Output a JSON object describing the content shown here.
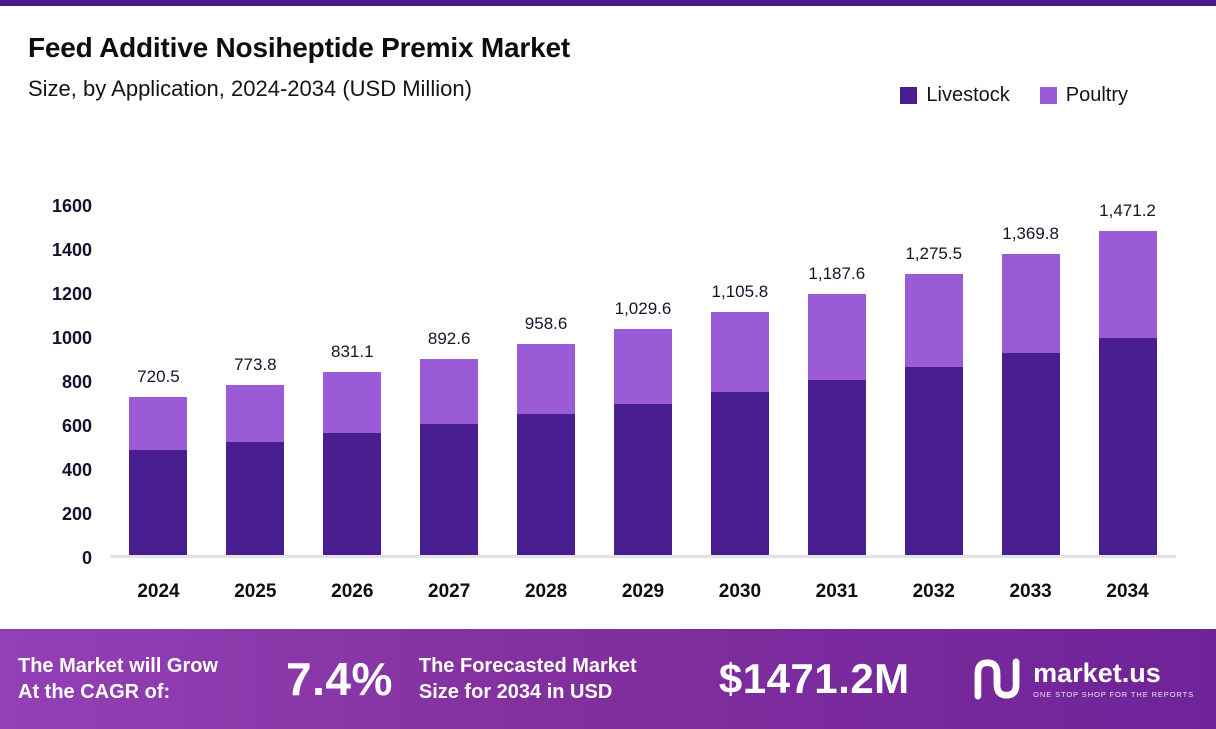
{
  "header": {
    "title": "Feed Additive Nosiheptide Premix Market",
    "subtitle": "Size, by Application, 2024-2034 (USD Million)",
    "legend": [
      {
        "label": "Livestock",
        "color": "#471D8F"
      },
      {
        "label": "Poultry",
        "color": "#9B5BD6"
      }
    ]
  },
  "chart_data": {
    "type": "bar",
    "stacked": true,
    "categories": [
      "2024",
      "2025",
      "2026",
      "2027",
      "2028",
      "2029",
      "2030",
      "2031",
      "2032",
      "2033",
      "2034"
    ],
    "series": [
      {
        "name": "Livestock",
        "color": "#471D8F",
        "values": [
          478.0,
          515.0,
          553.0,
          595.0,
          640.0,
          688.0,
          740.0,
          795.0,
          855.0,
          918.0,
          985.0
        ]
      },
      {
        "name": "Poultry",
        "color": "#9B5BD6",
        "values": [
          242.5,
          258.8,
          278.1,
          297.6,
          318.6,
          341.6,
          365.8,
          392.6,
          420.5,
          451.8,
          486.2
        ]
      }
    ],
    "totals": [
      720.5,
      773.8,
      831.1,
      892.6,
      958.6,
      1029.6,
      1105.8,
      1187.6,
      1275.5,
      1369.8,
      1471.2
    ],
    "total_labels": [
      "720.5",
      "773.8",
      "831.1",
      "892.6",
      "958.6",
      "1,029.6",
      "1,105.8",
      "1,187.6",
      "1,275.5",
      "1,369.8",
      "1,471.2"
    ],
    "title": "Feed Additive Nosiheptide Premix Market Size, by Application, 2024-2034 (USD Million)",
    "xlabel": "",
    "ylabel": "",
    "ylim": [
      0,
      1600
    ],
    "yticks": [
      0,
      200,
      400,
      600,
      800,
      1000,
      1200,
      1400,
      1600
    ],
    "grid": false,
    "legend_position": "top-right"
  },
  "banner": {
    "cagr_line1": "The Market will Grow",
    "cagr_line2": "At the CAGR of:",
    "cagr_value": "7.4%",
    "forecast_line1": "The Forecasted Market",
    "forecast_line2": "Size for 2034 in USD",
    "forecast_value": "$1471.2M",
    "logo_text": "market.us",
    "logo_tagline": "ONE STOP SHOP FOR THE REPORTS"
  }
}
